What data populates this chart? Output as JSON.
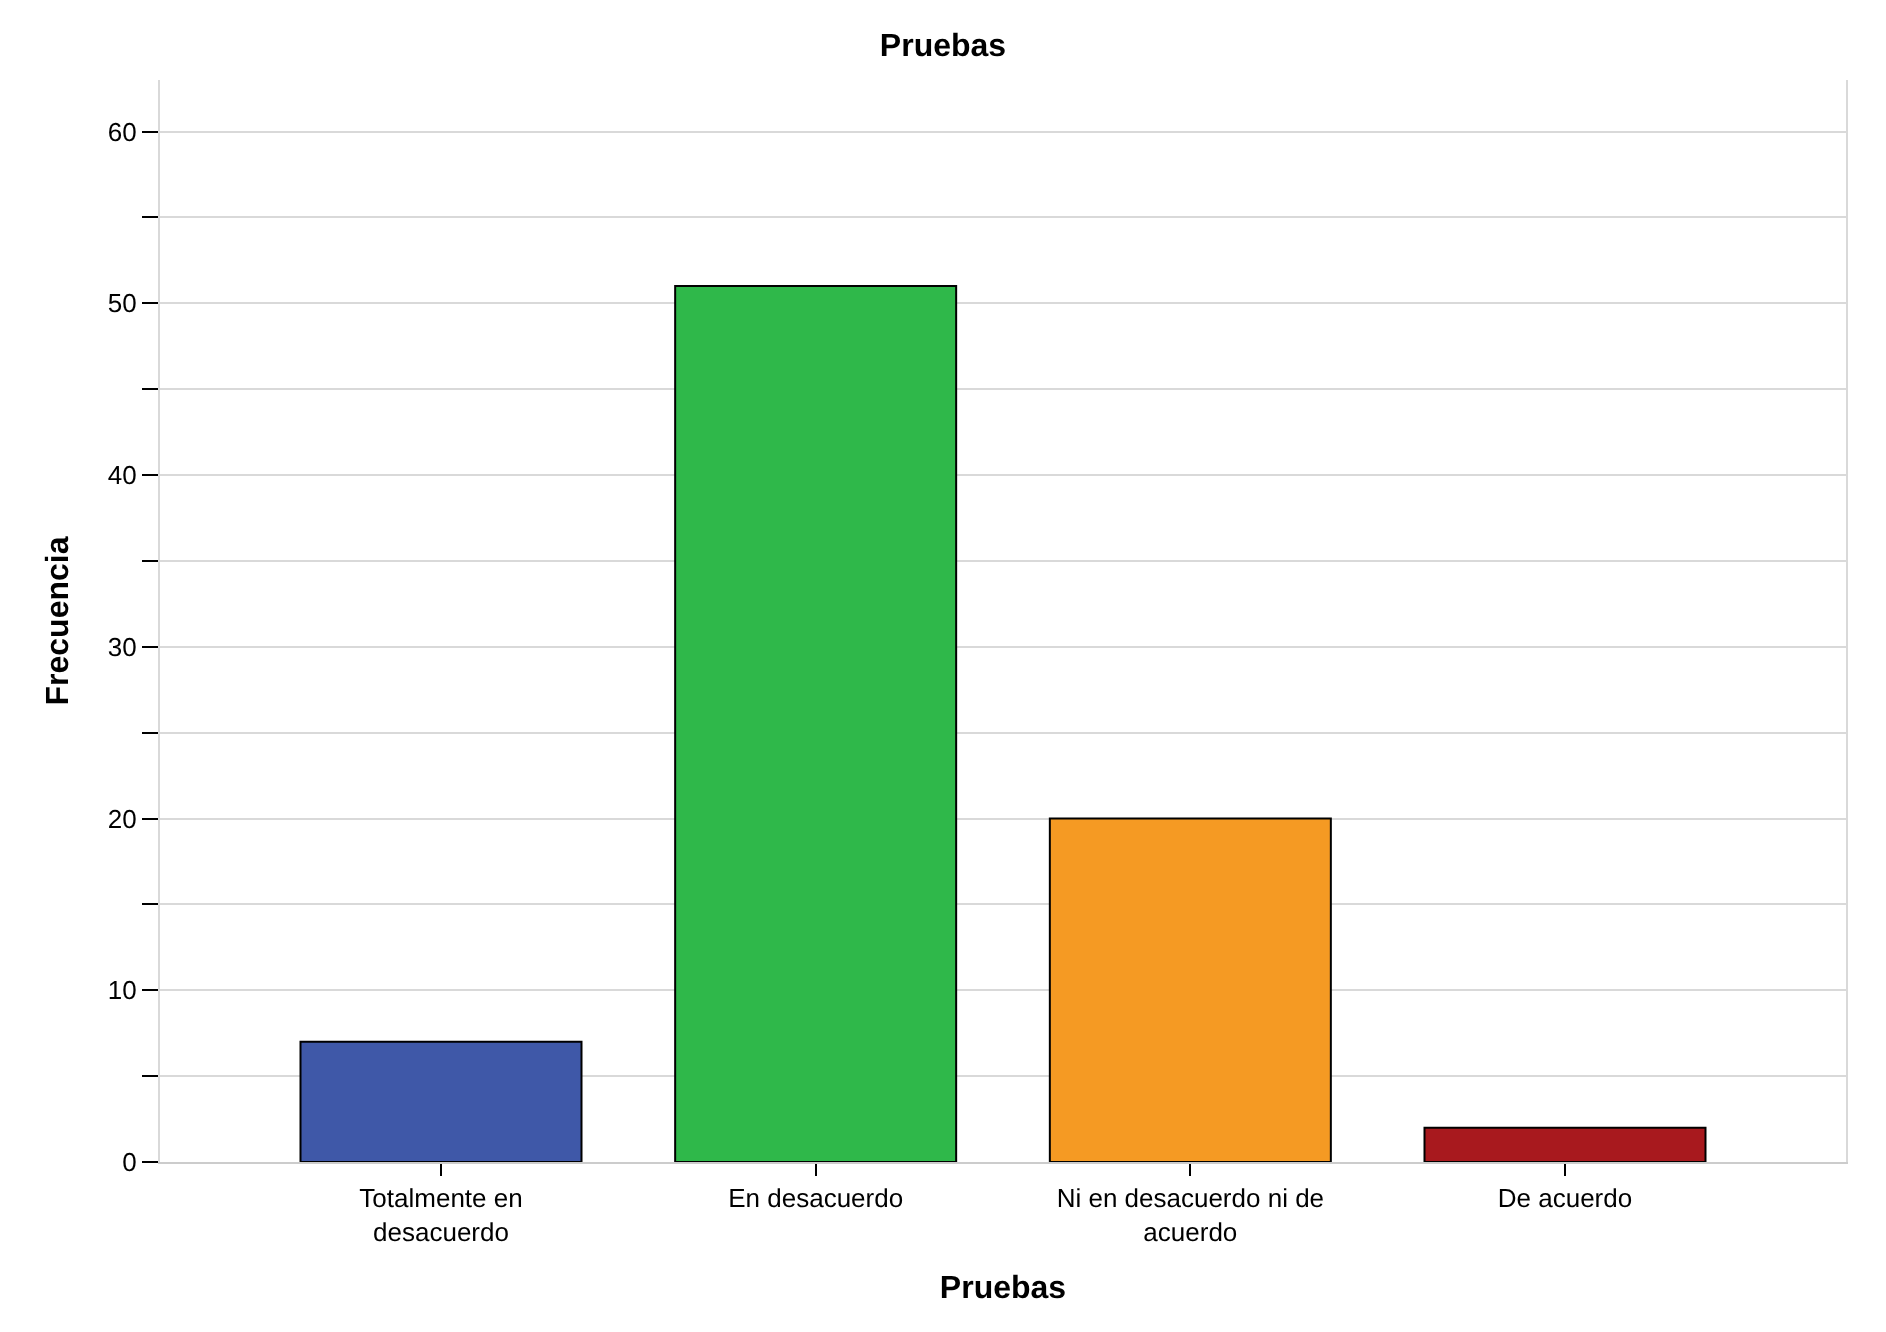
{
  "chart_data": {
    "type": "bar",
    "title": "Pruebas",
    "xlabel": "Pruebas",
    "ylabel": "Frecuencia",
    "categories": [
      "Totalmente en desacuerdo",
      "En desacuerdo",
      "Ni en desacuerdo ni de acuerdo",
      "De acuerdo"
    ],
    "values": [
      7,
      51,
      20,
      2
    ],
    "colors": [
      "#3f58a8",
      "#2fb84a",
      "#f59a23",
      "#a8191e"
    ],
    "ylim": [
      0,
      63
    ],
    "yticks": [
      0,
      {
        "value": 5,
        "label": null
      },
      10,
      {
        "value": 15,
        "label": null
      },
      20,
      {
        "value": 25,
        "label": null
      },
      30,
      {
        "value": 35,
        "label": null
      },
      40,
      {
        "value": 45,
        "label": null
      },
      50,
      {
        "value": 55,
        "label": null
      },
      60
    ],
    "grid": "y"
  }
}
